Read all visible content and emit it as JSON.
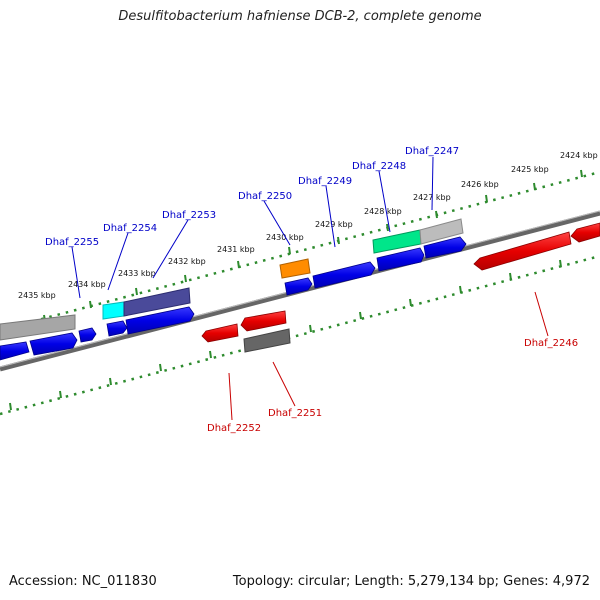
{
  "title": "Desulfitobacterium hafniense DCB-2, complete genome",
  "footer": {
    "accession": "Accession: NC_011830",
    "summary": "Topology: circular; Length: 5,279,134 bp; Genes: 4,972"
  },
  "colors": {
    "backbone": "#808080",
    "ticks": "#2e8b2e",
    "forward_label": "#0000c8",
    "reverse_label": "#c80000",
    "blue_gene": "#0000ee",
    "red_gene": "#ee0000"
  },
  "scale_labels": [
    "2424 kbp",
    "2425 kbp",
    "2426 kbp",
    "2427 kbp",
    "2428 kbp",
    "2429 kbp",
    "2430 kbp",
    "2431 kbp",
    "2432 kbp",
    "2433 kbp",
    "2434 kbp",
    "2435 kbp"
  ],
  "forward_labels": [
    "Dhaf_2247",
    "Dhaf_2248",
    "Dhaf_2249",
    "Dhaf_2250",
    "Dhaf_2253",
    "Dhaf_2254",
    "Dhaf_2255"
  ],
  "reverse_labels": [
    "Dhaf_2246",
    "Dhaf_2251",
    "Dhaf_2252"
  ]
}
